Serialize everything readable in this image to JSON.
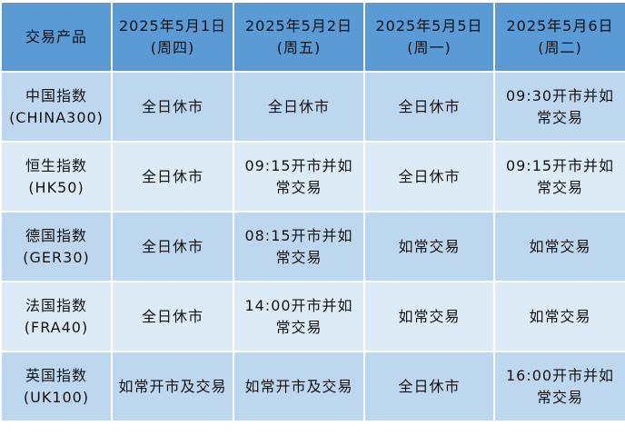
{
  "table": {
    "headers": [
      {
        "line1": "交易产品",
        "line2": ""
      },
      {
        "line1": "2025年5月1日",
        "line2": "(周四)"
      },
      {
        "line1": "2025年5月2日",
        "line2": "(周五)"
      },
      {
        "line1": "2025年5月5日",
        "line2": "(周一)"
      },
      {
        "line1": "2025年5月6日",
        "line2": "(周二)"
      }
    ],
    "rows": [
      {
        "name": "中国指数",
        "code": "(CHINA300)",
        "cells": [
          "全日休市",
          "全日休市",
          "全日休市",
          "09:30开市并如常交易"
        ]
      },
      {
        "name": "恒生指数",
        "code": "(HK50)",
        "cells": [
          "全日休市",
          "09:15开市并如常交易",
          "全日休市",
          "09:15开市并如常交易"
        ]
      },
      {
        "name": "德国指数",
        "code": "(GER30)",
        "cells": [
          "全日休市",
          "08:15开市并如常交易",
          "如常交易",
          "如常交易"
        ]
      },
      {
        "name": "法国指数",
        "code": "(FRA40)",
        "cells": [
          "全日休市",
          "14:00开市并如常交易",
          "如常交易",
          "如常交易"
        ]
      },
      {
        "name": "英国指数",
        "code": "(UK100)",
        "cells": [
          "如常开市及交易",
          "如常开市及交易",
          "全日休市",
          "16:00开市并如常交易"
        ]
      }
    ]
  },
  "colors": {
    "header": "#5b9bd5",
    "row_dark": "#bdd7ee",
    "row_light": "#ddebf7"
  }
}
